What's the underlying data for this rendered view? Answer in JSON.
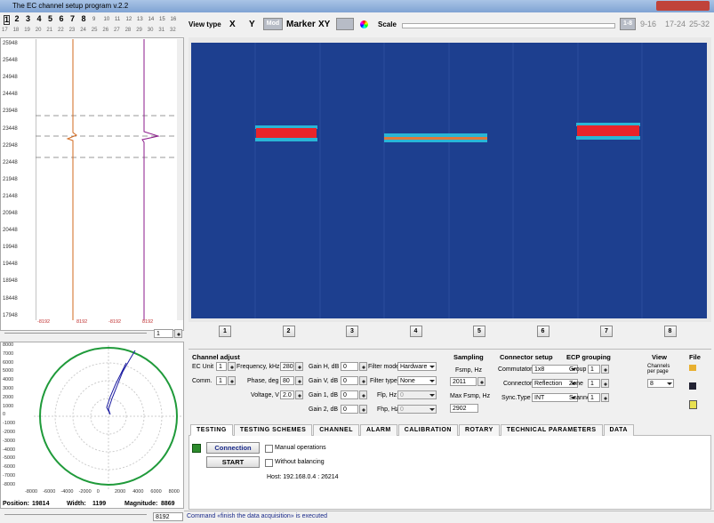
{
  "window": {
    "title": "The EC channel setup program v.2.2"
  },
  "channel_selector": {
    "row1": [
      "1",
      "2",
      "3",
      "4",
      "5",
      "6",
      "7",
      "8",
      "9",
      "10",
      "11",
      "12",
      "13",
      "14",
      "15",
      "16"
    ],
    "row2": [
      "17",
      "18",
      "19",
      "20",
      "21",
      "22",
      "23",
      "24",
      "25",
      "26",
      "27",
      "28",
      "29",
      "30",
      "31",
      "32"
    ]
  },
  "toolbar": {
    "view_type": "View type",
    "x": "X",
    "y": "Y",
    "mod": "Mod",
    "marker": "Marker",
    "xy": "XY",
    "scale": "Scale",
    "pages": [
      "1-8",
      "9-16",
      "17-24",
      "25-32"
    ]
  },
  "strip": {
    "y_labels": [
      "25948",
      "25448",
      "24948",
      "24448",
      "23948",
      "23448",
      "22948",
      "22448",
      "21948",
      "21448",
      "20948",
      "20448",
      "19948",
      "19448",
      "18948",
      "18448",
      "17948"
    ],
    "x_labels": [
      "-8192",
      "8192",
      "-8192",
      "8192"
    ],
    "spin": "1"
  },
  "channel_buttons": [
    "1",
    "2",
    "3",
    "4",
    "5",
    "6",
    "7",
    "8"
  ],
  "lissajous": {
    "y_labels": [
      "8000",
      "7000",
      "6000",
      "5000",
      "4000",
      "3000",
      "2000",
      "1000",
      "0",
      "-1000",
      "-2000",
      "-3000",
      "-4000",
      "-5000",
      "-6000",
      "-7000",
      "-8000"
    ],
    "x_labels": [
      "-8000",
      "-6000",
      "-4000",
      "-2000",
      "0",
      "2000",
      "4000",
      "6000",
      "8000"
    ],
    "position_label": "Position:",
    "position": "19814",
    "width_label": "Width:",
    "width": "1199",
    "magnitude_label": "Magnitude:",
    "magnitude": "8869",
    "range": "8192"
  },
  "channel_adjust": {
    "title": "Channel adjust",
    "ec_unit_label": "EC Unit",
    "ec_unit": "1",
    "comm_label": "Comm.",
    "comm": "1",
    "frequency_label": "Frequency, kHz",
    "frequency": "280",
    "phase_label": "Phase, deg",
    "phase": "80",
    "voltage_label": "Voltage, V",
    "voltage": "2.0",
    "gain_h_label": "Gain H, dB",
    "gain_h": "0",
    "gain_v_label": "Gain V, dB",
    "gain_v": "0",
    "gain_1_label": "Gain 1, dB",
    "gain_1": "0",
    "gain_2_label": "Gain 2, dB",
    "gain_2": "0",
    "filter_mode_label": "Filter mode",
    "filter_mode": "Hardware",
    "filter_type_label": "Filter type",
    "filter_type": "None",
    "flp_label": "Flp, Hz",
    "flp": "0",
    "fhp_label": "Fhp, Hz",
    "fhp": "0"
  },
  "sampling": {
    "title": "Sampling",
    "fsmp_label": "Fsmp, Hz",
    "fsmp": "2011",
    "max_label": "Max Fsmp, Hz",
    "max": "2902"
  },
  "connector_setup": {
    "title": "Connector setup",
    "commutator_label": "Commutator",
    "commutator": "1x8",
    "connector_label": "Connector",
    "connector": "Reflection",
    "sync_label": "Sync.Type",
    "sync": "INT"
  },
  "ecp_grouping": {
    "title": "ECP grouping",
    "group_label": "Group",
    "group": "1",
    "zone_label": "Zone",
    "zone": "1",
    "scanner_label": "Scanner",
    "scanner": "1"
  },
  "view": {
    "title": "View",
    "channels_label": "Channels per page",
    "channels": "8"
  },
  "file": {
    "title": "File"
  },
  "tabs": [
    "TESTING",
    "TESTING SCHEMES",
    "CHANNEL",
    "ALARM",
    "CALIBRATION",
    "ROTARY",
    "TECHNICAL PARAMETERS",
    "DATA"
  ],
  "testing": {
    "connection": "Connection",
    "start": "START",
    "manual": "Manual operations",
    "balancing": "Without balancing",
    "host": "Host: 192.168.0.4 : 26214"
  },
  "status": "Command «finish the data acquisition» is executed"
}
